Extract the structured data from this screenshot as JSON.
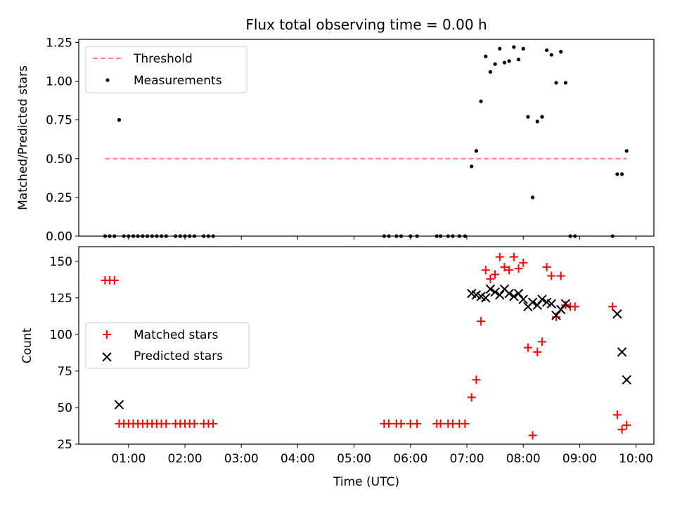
{
  "chart_data": [
    {
      "type": "scatter",
      "title": "Flux total observing time = 0.00 h",
      "ylabel": "Matched/Predicted stars",
      "xlabel": "",
      "xlim": [
        "00:07",
        "10:19"
      ],
      "ylim": [
        0,
        1.27
      ],
      "yticks": [
        0.0,
        0.25,
        0.5,
        0.75,
        1.0,
        1.25
      ],
      "ytick_labels": [
        "0.00",
        "0.25",
        "0.50",
        "0.75",
        "1.00",
        "1.25"
      ],
      "grid": false,
      "legend_position": "top-left",
      "threshold": {
        "name": "Threshold",
        "value": 0.5,
        "x_range": [
          "00:35",
          "09:50"
        ],
        "color": "#ff7f7f",
        "style": "dashed"
      },
      "series": [
        {
          "name": "Measurements",
          "marker": "dot",
          "color": "#000000",
          "points": [
            [
              "00:35",
              0.0
            ],
            [
              "00:40",
              0.0
            ],
            [
              "00:45",
              0.0
            ],
            [
              "00:50",
              0.75
            ],
            [
              "00:55",
              0.0
            ],
            [
              "01:00",
              0.0
            ],
            [
              "01:05",
              0.0
            ],
            [
              "01:10",
              0.0
            ],
            [
              "01:15",
              0.0
            ],
            [
              "01:20",
              0.0
            ],
            [
              "01:25",
              0.0
            ],
            [
              "01:30",
              0.0
            ],
            [
              "01:35",
              0.0
            ],
            [
              "01:40",
              0.0
            ],
            [
              "01:50",
              0.0
            ],
            [
              "01:55",
              0.0
            ],
            [
              "02:00",
              0.0
            ],
            [
              "02:05",
              0.0
            ],
            [
              "02:10",
              0.0
            ],
            [
              "02:20",
              0.0
            ],
            [
              "02:25",
              0.0
            ],
            [
              "02:30",
              0.0
            ],
            [
              "05:32",
              0.0
            ],
            [
              "05:37",
              0.0
            ],
            [
              "05:45",
              0.0
            ],
            [
              "05:50",
              0.0
            ],
            [
              "06:00",
              0.0
            ],
            [
              "06:07",
              0.0
            ],
            [
              "06:28",
              0.0
            ],
            [
              "06:32",
              0.0
            ],
            [
              "06:40",
              0.0
            ],
            [
              "06:45",
              0.0
            ],
            [
              "06:52",
              0.0
            ],
            [
              "06:58",
              0.0
            ],
            [
              "07:05",
              0.45
            ],
            [
              "07:10",
              0.55
            ],
            [
              "07:15",
              0.87
            ],
            [
              "07:20",
              1.16
            ],
            [
              "07:25",
              1.06
            ],
            [
              "07:30",
              1.11
            ],
            [
              "07:35",
              1.21
            ],
            [
              "07:40",
              1.12
            ],
            [
              "07:45",
              1.13
            ],
            [
              "07:50",
              1.22
            ],
            [
              "07:55",
              1.14
            ],
            [
              "08:00",
              1.21
            ],
            [
              "08:05",
              0.77
            ],
            [
              "08:10",
              0.25
            ],
            [
              "08:15",
              0.74
            ],
            [
              "08:20",
              0.77
            ],
            [
              "08:25",
              1.2
            ],
            [
              "08:30",
              1.17
            ],
            [
              "08:35",
              0.99
            ],
            [
              "08:40",
              1.19
            ],
            [
              "08:45",
              0.99
            ],
            [
              "08:50",
              0.0
            ],
            [
              "08:55",
              0.0
            ],
            [
              "09:35",
              0.0
            ],
            [
              "09:40",
              0.4
            ],
            [
              "09:45",
              0.4
            ],
            [
              "09:50",
              0.55
            ]
          ]
        }
      ]
    },
    {
      "type": "scatter",
      "title": "",
      "ylabel": "Count",
      "xlabel": "Time (UTC)",
      "xlim": [
        "00:07",
        "10:19"
      ],
      "ylim": [
        25,
        160
      ],
      "yticks": [
        25,
        50,
        75,
        100,
        125,
        150
      ],
      "ytick_labels": [
        "25",
        "50",
        "75",
        "100",
        "125",
        "150"
      ],
      "xticks": [
        "01:00",
        "02:00",
        "03:00",
        "04:00",
        "05:00",
        "06:00",
        "07:00",
        "08:00",
        "09:00",
        "10:00"
      ],
      "grid": false,
      "legend_position": "center-left",
      "series": [
        {
          "name": "Matched stars",
          "marker": "plus",
          "color": "#ff0000",
          "points": [
            [
              "00:35",
              137
            ],
            [
              "00:40",
              137
            ],
            [
              "00:45",
              137
            ],
            [
              "00:50",
              39
            ],
            [
              "00:55",
              39
            ],
            [
              "01:00",
              39
            ],
            [
              "01:05",
              39
            ],
            [
              "01:10",
              39
            ],
            [
              "01:15",
              39
            ],
            [
              "01:20",
              39
            ],
            [
              "01:25",
              39
            ],
            [
              "01:30",
              39
            ],
            [
              "01:35",
              39
            ],
            [
              "01:40",
              39
            ],
            [
              "01:50",
              39
            ],
            [
              "01:55",
              39
            ],
            [
              "02:00",
              39
            ],
            [
              "02:05",
              39
            ],
            [
              "02:10",
              39
            ],
            [
              "02:20",
              39
            ],
            [
              "02:25",
              39
            ],
            [
              "02:30",
              39
            ],
            [
              "05:32",
              39
            ],
            [
              "05:37",
              39
            ],
            [
              "05:45",
              39
            ],
            [
              "05:50",
              39
            ],
            [
              "06:00",
              39
            ],
            [
              "06:07",
              39
            ],
            [
              "06:28",
              39
            ],
            [
              "06:32",
              39
            ],
            [
              "06:40",
              39
            ],
            [
              "06:45",
              39
            ],
            [
              "06:52",
              39
            ],
            [
              "06:58",
              39
            ],
            [
              "07:05",
              57
            ],
            [
              "07:10",
              69
            ],
            [
              "07:15",
              109
            ],
            [
              "07:20",
              144
            ],
            [
              "07:25",
              138
            ],
            [
              "07:30",
              141
            ],
            [
              "07:35",
              153
            ],
            [
              "07:40",
              146
            ],
            [
              "07:45",
              144
            ],
            [
              "07:50",
              153
            ],
            [
              "07:55",
              145
            ],
            [
              "08:00",
              149
            ],
            [
              "08:05",
              91
            ],
            [
              "08:10",
              31
            ],
            [
              "08:15",
              88
            ],
            [
              "08:20",
              95
            ],
            [
              "08:25",
              146
            ],
            [
              "08:30",
              140
            ],
            [
              "08:35",
              112
            ],
            [
              "08:40",
              140
            ],
            [
              "08:45",
              120
            ],
            [
              "08:50",
              119
            ],
            [
              "08:55",
              119
            ],
            [
              "09:35",
              119
            ],
            [
              "09:40",
              45
            ],
            [
              "09:45",
              35
            ],
            [
              "09:50",
              38
            ]
          ]
        },
        {
          "name": "Predicted stars",
          "marker": "x",
          "color": "#000000",
          "points": [
            [
              "00:50",
              52
            ],
            [
              "07:05",
              128
            ],
            [
              "07:10",
              127
            ],
            [
              "07:15",
              126
            ],
            [
              "07:20",
              125
            ],
            [
              "07:25",
              131
            ],
            [
              "07:30",
              129
            ],
            [
              "07:35",
              127
            ],
            [
              "07:40",
              131
            ],
            [
              "07:45",
              128
            ],
            [
              "07:50",
              126
            ],
            [
              "07:55",
              128
            ],
            [
              "08:00",
              124
            ],
            [
              "08:05",
              119
            ],
            [
              "08:10",
              122
            ],
            [
              "08:15",
              120
            ],
            [
              "08:20",
              124
            ],
            [
              "08:25",
              122
            ],
            [
              "08:30",
              121
            ],
            [
              "08:35",
              113
            ],
            [
              "08:40",
              117
            ],
            [
              "08:45",
              121
            ],
            [
              "09:40",
              114
            ],
            [
              "09:45",
              88
            ],
            [
              "09:50",
              69
            ]
          ]
        }
      ]
    }
  ]
}
